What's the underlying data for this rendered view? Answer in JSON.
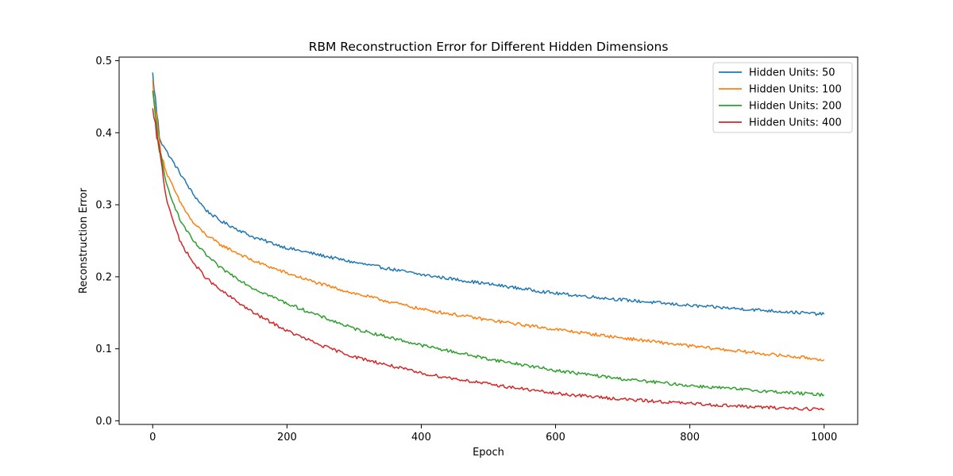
{
  "chart_data": {
    "type": "line",
    "title": "RBM Reconstruction Error for Different Hidden Dimensions",
    "xlabel": "Epoch",
    "ylabel": "Reconstruction Error",
    "xlim": [
      -50,
      1050
    ],
    "ylim": [
      -0.005,
      0.505
    ],
    "xticks": [
      0,
      200,
      400,
      600,
      800,
      1000
    ],
    "yticks": [
      0.0,
      0.1,
      0.2,
      0.3,
      0.4,
      0.5
    ],
    "xtick_labels": [
      "0",
      "200",
      "400",
      "600",
      "800",
      "1000"
    ],
    "ytick_labels": [
      "0.0",
      "0.1",
      "0.2",
      "0.3",
      "0.4",
      "0.5"
    ],
    "grid": false,
    "legend_position": "top-right",
    "x": [
      0,
      10,
      20,
      40,
      60,
      80,
      100,
      150,
      200,
      250,
      300,
      400,
      500,
      600,
      700,
      800,
      900,
      1000
    ],
    "series": [
      {
        "name": "Hidden Units: 50",
        "color": "#1f77b4",
        "values": [
          0.481,
          0.395,
          0.375,
          0.345,
          0.315,
          0.292,
          0.278,
          0.255,
          0.24,
          0.23,
          0.22,
          0.203,
          0.19,
          0.177,
          0.168,
          0.16,
          0.154,
          0.148
        ]
      },
      {
        "name": "Hidden Units: 100",
        "color": "#ff7f0e",
        "values": [
          0.47,
          0.385,
          0.345,
          0.305,
          0.275,
          0.258,
          0.245,
          0.222,
          0.205,
          0.19,
          0.177,
          0.155,
          0.14,
          0.127,
          0.115,
          0.104,
          0.094,
          0.085
        ]
      },
      {
        "name": "Hidden Units: 200",
        "color": "#2ca02c",
        "values": [
          0.455,
          0.375,
          0.33,
          0.28,
          0.25,
          0.23,
          0.213,
          0.184,
          0.163,
          0.145,
          0.128,
          0.105,
          0.086,
          0.07,
          0.058,
          0.049,
          0.042,
          0.036
        ]
      },
      {
        "name": "Hidden Units: 400",
        "color": "#d62728",
        "values": [
          0.43,
          0.375,
          0.31,
          0.25,
          0.22,
          0.198,
          0.182,
          0.15,
          0.125,
          0.105,
          0.089,
          0.066,
          0.051,
          0.038,
          0.03,
          0.024,
          0.019,
          0.016
        ]
      }
    ]
  }
}
